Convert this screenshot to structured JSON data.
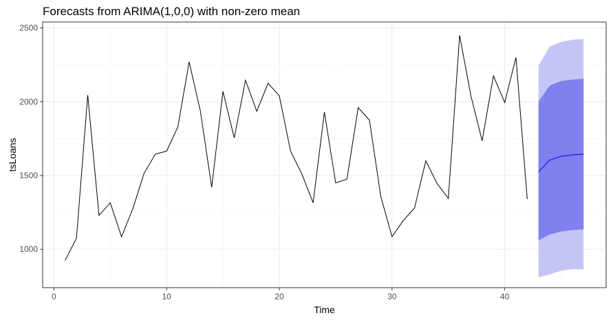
{
  "chart_data": {
    "type": "line",
    "title": "Forecasts from ARIMA(1,0,0) with non-zero mean",
    "xlabel": "Time",
    "ylabel": "tsLoans",
    "xlim": [
      -1,
      49
    ],
    "ylim": [
      740,
      2540
    ],
    "x_ticks": [
      0,
      10,
      20,
      30,
      40
    ],
    "y_ticks": [
      1000,
      1500,
      2000,
      2500
    ],
    "grid": true,
    "colors": {
      "observed": "#000000",
      "forecast": "#0000ff",
      "pi80": "#8080ee",
      "pi95": "#c5c5f5"
    },
    "series": [
      {
        "x": [
          1,
          2,
          3,
          4,
          5,
          6,
          7,
          8,
          9,
          10,
          11,
          12,
          13,
          14,
          15,
          16,
          17,
          18,
          19,
          20,
          21,
          22,
          23,
          24,
          25,
          26,
          27,
          28,
          29,
          30,
          31,
          32,
          33,
          34,
          35,
          36,
          37,
          38,
          39,
          40,
          41,
          42
        ],
        "values": [
          925,
          1075,
          2045,
          1230,
          1315,
          1085,
          1275,
          1515,
          1645,
          1665,
          1830,
          2270,
          1935,
          1420,
          2070,
          1755,
          2145,
          1935,
          2125,
          2040,
          1665,
          1510,
          1315,
          1930,
          1450,
          1475,
          1960,
          1875,
          1360,
          1085,
          1195,
          1280,
          1600,
          1445,
          1345,
          2450,
          2040,
          1735,
          2175,
          1995,
          2300,
          1340
        ]
      },
      {
        "x": [
          43,
          44,
          45,
          46,
          47
        ],
        "values": [
          1525,
          1605,
          1630,
          1640,
          1645
        ],
        "lower80": [
          1060,
          1100,
          1120,
          1130,
          1135
        ],
        "upper80": [
          2000,
          2110,
          2140,
          2150,
          2155
        ],
        "lower95": [
          810,
          830,
          855,
          865,
          865
        ],
        "upper95": [
          2245,
          2375,
          2405,
          2420,
          2425
        ]
      }
    ]
  }
}
